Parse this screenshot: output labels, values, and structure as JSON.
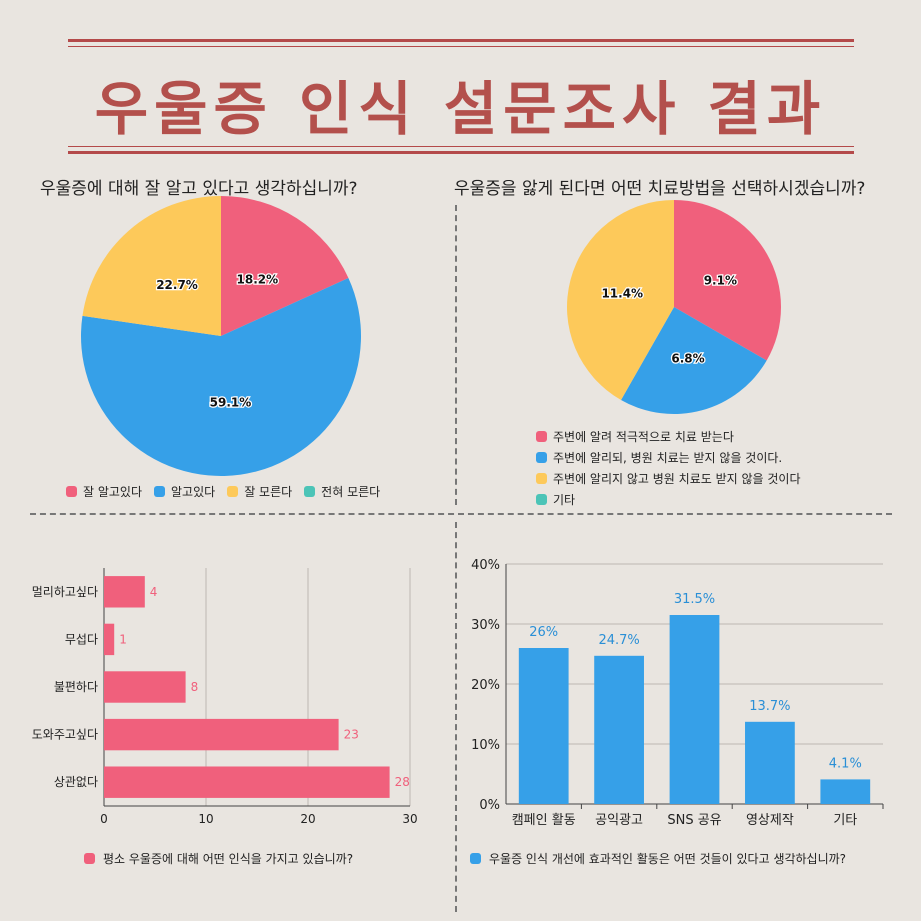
{
  "title": "우울증 인식 설문조사 결과",
  "colors": {
    "pink": "#f0607c",
    "blue": "#36a0e8",
    "yellow": "#fdc95a",
    "teal": "#4cc4b7",
    "title": "#b3504c"
  },
  "chart_data": [
    {
      "type": "pie",
      "title": "우울증에 대해 잘 알고 있다고 생각하십니까?",
      "categories": [
        "잘 알고있다",
        "알고있다",
        "잘 모른다",
        "전혀 모른다"
      ],
      "values": [
        18.2,
        59.1,
        22.7,
        0
      ],
      "labels": [
        "18.2%",
        "59.1%",
        "22.7%",
        ""
      ],
      "colors": [
        "#f0607c",
        "#36a0e8",
        "#fdc95a",
        "#4cc4b7"
      ],
      "legend": "bottom"
    },
    {
      "type": "pie",
      "title": "우울증을 앓게 된다면 어떤 치료방법을 선택하시겠습니까?",
      "categories": [
        "주변에 알려 적극적으로 치료 받는다",
        "주변에 알리되, 병원 치료는 받지 않을 것이다.",
        "주변에 알리지 않고 병원 치료도 받지 않을 것이다",
        "기타"
      ],
      "values": [
        9.1,
        6.8,
        11.4,
        0
      ],
      "labels": [
        "9.1%",
        "6.8%",
        "11.4%",
        ""
      ],
      "colors": [
        "#f0607c",
        "#36a0e8",
        "#fdc95a",
        "#4cc4b7"
      ],
      "legend": "bottom"
    },
    {
      "type": "bar",
      "orientation": "horizontal",
      "categories": [
        "멀리하고싶다",
        "무섭다",
        "불편하다",
        "도와주고싶다",
        "상관없다"
      ],
      "values": [
        4,
        1,
        8,
        23,
        28
      ],
      "xlim": [
        0,
        30
      ],
      "xticks": [
        "0",
        "10",
        "20",
        "30"
      ],
      "grid": true,
      "color": "#f0607c",
      "legend": "평소 우울증에 대해 어떤 인식을 가지고 있습니까?"
    },
    {
      "type": "bar",
      "orientation": "vertical",
      "categories": [
        "캠페인 활동",
        "공익광고",
        "SNS 공유",
        "영상제작",
        "기타"
      ],
      "values": [
        26,
        24.7,
        31.5,
        13.7,
        4.1
      ],
      "labels": [
        "26%",
        "24.7%",
        "31.5%",
        "13.7%",
        "4.1%"
      ],
      "ylim": [
        0,
        40
      ],
      "yticks": [
        "0%",
        "10%",
        "20%",
        "30%",
        "40%"
      ],
      "grid": true,
      "color": "#36a0e8",
      "legend": "우울증 인식 개선에 효과적인 활동은 어떤 것들이 있다고 생각하십니까?"
    }
  ]
}
